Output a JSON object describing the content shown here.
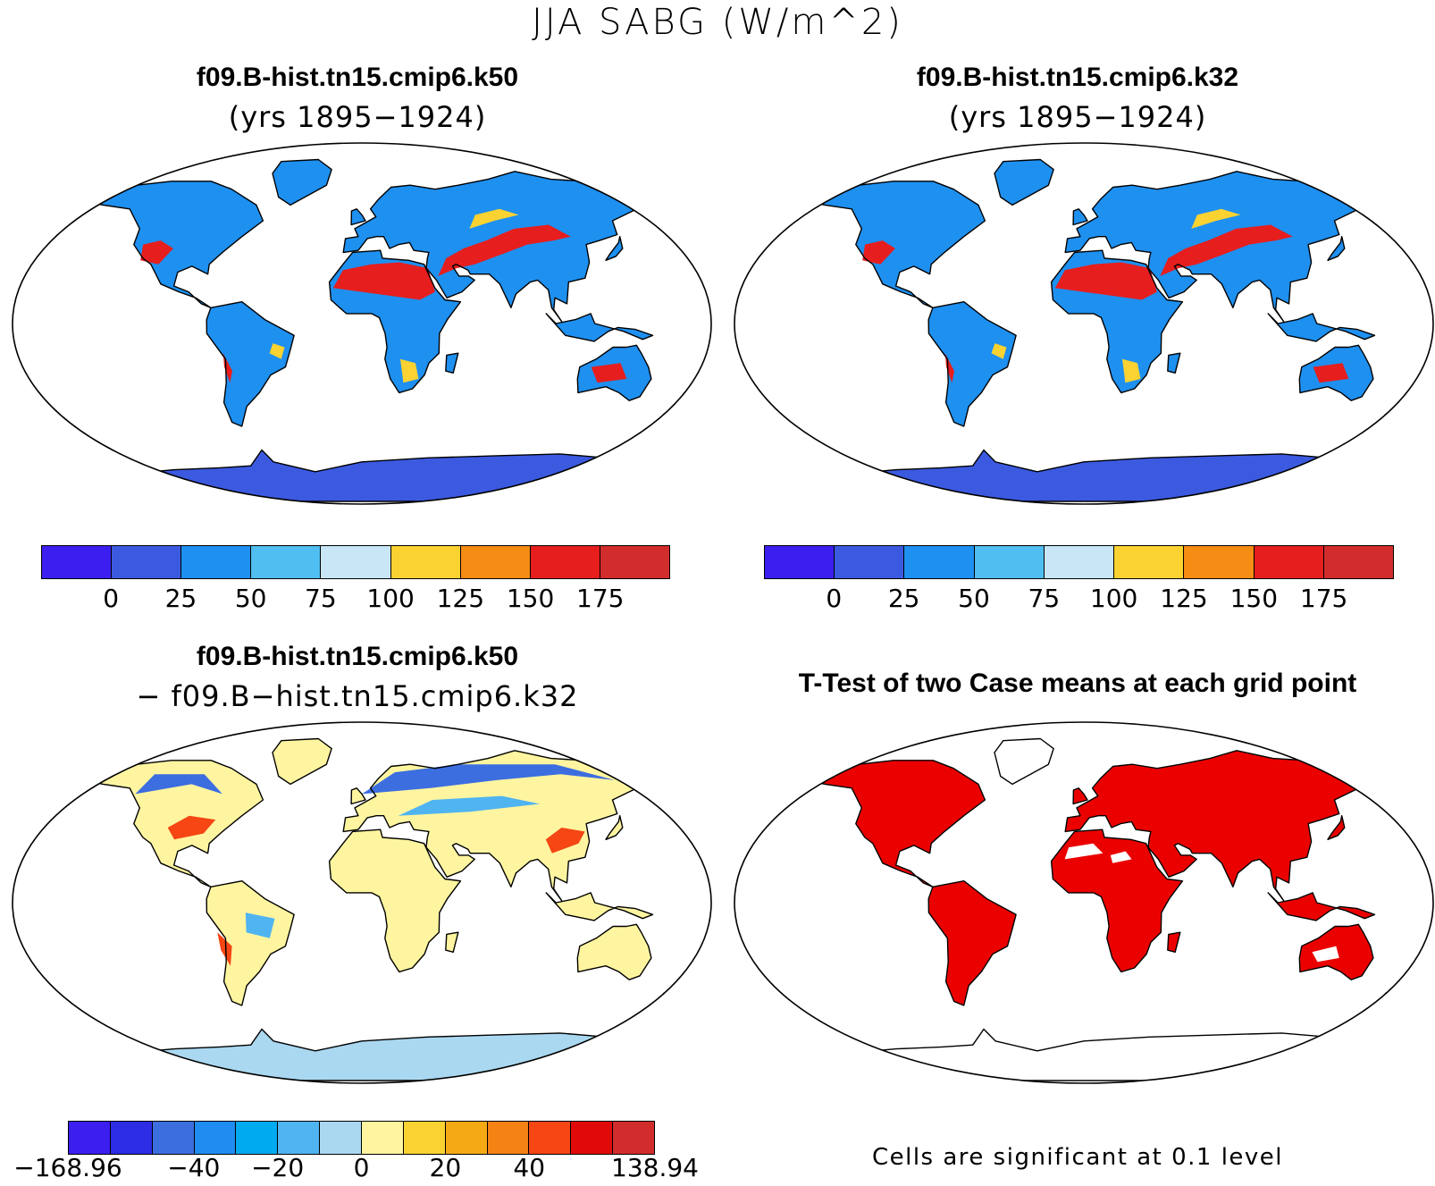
{
  "title": "JJA SABG (W/m^2)",
  "panels": {
    "top_left": {
      "title": "f09.B-hist.tn15.cmip6.k50",
      "subtitle": "(yrs 1895−1924)"
    },
    "top_right": {
      "title": "f09.B-hist.tn15.cmip6.k32",
      "subtitle": "(yrs 1895−1924)"
    },
    "bottom_left": {
      "title": "f09.B-hist.tn15.cmip6.k50",
      "subtitle": "− f09.B−hist.tn15.cmip6.k32"
    },
    "bottom_right": {
      "title": "T-Test of two Case means at each grid point",
      "note": "Cells are significant at 0.1 level"
    }
  },
  "colorbars": {
    "absolute": {
      "colors": [
        "#3c1ef0",
        "#3c5ae0",
        "#1e90f0",
        "#50bef0",
        "#c8e6f5",
        "#fad232",
        "#f58c14",
        "#e61e1e",
        "#d22d2d"
      ],
      "labels": [
        "0",
        "25",
        "50",
        "75",
        "100",
        "125",
        "150",
        "175"
      ]
    },
    "difference": {
      "colors": [
        "#3c1ef0",
        "#2d2de6",
        "#3c6ee0",
        "#1e8cf0",
        "#00aaf0",
        "#50b4f0",
        "#aad8f0",
        "#fff5a0",
        "#fad232",
        "#f5aa14",
        "#f58214",
        "#f54614",
        "#e10a0a",
        "#d22d2d"
      ],
      "labels": [
        "−168.96",
        "−40",
        "−20",
        "0",
        "20",
        "40",
        "138.94"
      ]
    }
  },
  "palette": {
    "ocean": "#ffffff",
    "significant": "#eb0000"
  }
}
